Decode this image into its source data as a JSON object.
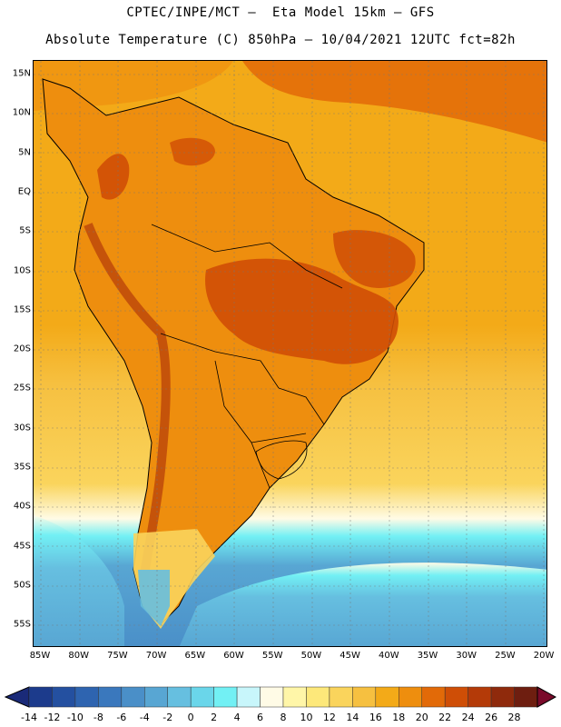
{
  "title_line1": "CPTEC/INPE/MCT –  Eta Model 15km – GFS",
  "title_line2": "Absolute Temperature (C) 850hPa – 10/04/2021 12UTC fct=82h",
  "lat_labels": [
    "15N",
    "10N",
    "5N",
    "EQ",
    "5S",
    "10S",
    "15S",
    "20S",
    "25S",
    "30S",
    "35S",
    "40S",
    "45S",
    "50S",
    "55S"
  ],
  "lon_labels": [
    "85W",
    "80W",
    "75W",
    "70W",
    "65W",
    "60W",
    "55W",
    "50W",
    "45W",
    "40W",
    "35W",
    "30W",
    "25W",
    "20W"
  ],
  "colorbar": {
    "labels": [
      "-14",
      "-12",
      "-10",
      "-8",
      "-6",
      "-4",
      "-2",
      "0",
      "2",
      "4",
      "6",
      "8",
      "10",
      "12",
      "14",
      "16",
      "18",
      "20",
      "22",
      "24",
      "26",
      "28"
    ],
    "colors": [
      "#1c3b8c",
      "#2450a0",
      "#2e64b0",
      "#3a78bd",
      "#4a8fc8",
      "#58a6d3",
      "#66bfe0",
      "#6ad6ea",
      "#72f0f4",
      "#c8f6fb",
      "#fffbe6",
      "#fff6a8",
      "#fde87a",
      "#fad45c",
      "#f6c040",
      "#f3aa18",
      "#ee8e0e",
      "#e26a08",
      "#cf4e06",
      "#b43a08",
      "#8f2a0c",
      "#6e1e10"
    ]
  }
}
